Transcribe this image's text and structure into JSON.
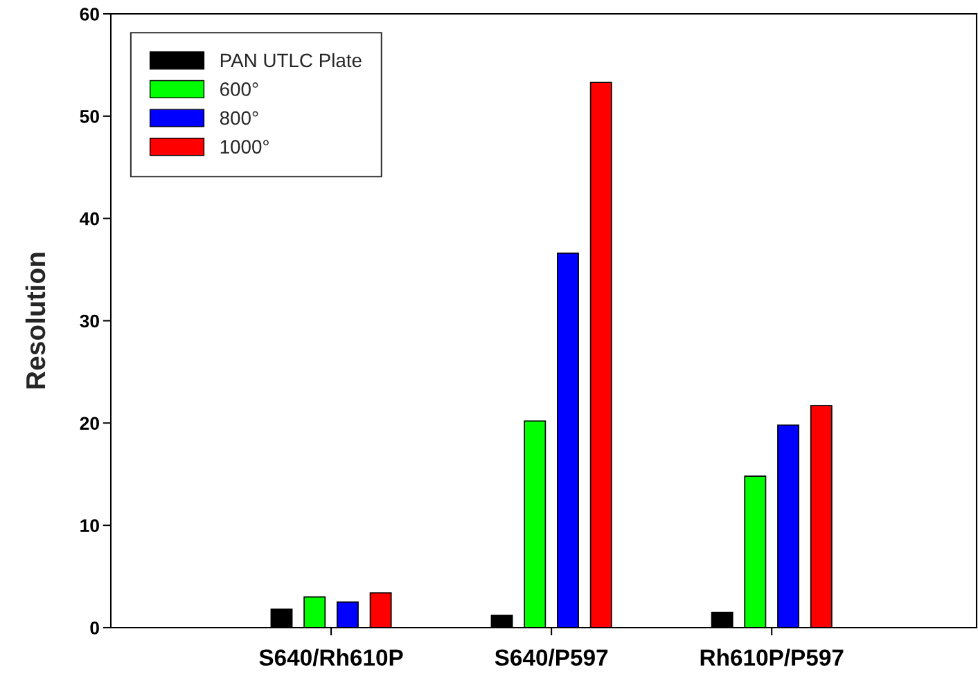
{
  "chart_data": {
    "type": "bar",
    "ylabel": "Resolution",
    "categories": [
      "S640/Rh610P",
      "S640/P597",
      "Rh610P/P597"
    ],
    "series": [
      {
        "name": "PAN UTLC Plate",
        "color": "#000000",
        "values": [
          1.8,
          1.2,
          1.5
        ]
      },
      {
        "name": "600°",
        "color": "#00ff00",
        "values": [
          3.0,
          20.2,
          14.8
        ]
      },
      {
        "name": "800°",
        "color": "#0000ff",
        "values": [
          2.5,
          36.6,
          19.8
        ]
      },
      {
        "name": "1000°",
        "color": "#ff0000",
        "values": [
          3.4,
          53.3,
          21.7
        ]
      }
    ],
    "ylim": [
      0,
      60
    ],
    "yticks": [
      0,
      10,
      20,
      30,
      40,
      50,
      60
    ],
    "grid": false,
    "legend": "top left"
  }
}
